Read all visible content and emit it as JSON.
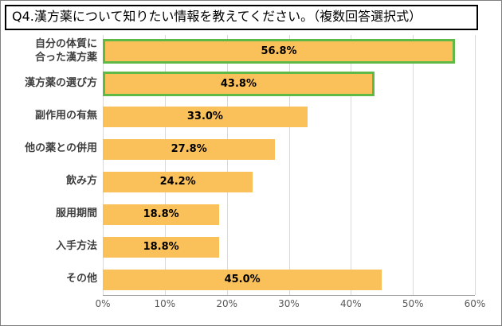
{
  "title": "Q4.漢方薬について知りたい情報を教えてください。（複数回答選択式）",
  "chart_data": {
    "type": "bar",
    "orientation": "horizontal",
    "title": "Q4.漢方薬について知りたい情報を教えてください。（複数回答選択式）",
    "categories": [
      "自分の体質に\n合った漢方薬",
      "漢方薬の選び方",
      "副作用の有無",
      "他の薬との併用",
      "飲み方",
      "服用期間",
      "入手方法",
      "その他"
    ],
    "values": [
      56.8,
      43.8,
      33.0,
      27.8,
      24.2,
      18.8,
      18.8,
      45.0
    ],
    "value_labels": [
      "56.8%",
      "43.8%",
      "33.0%",
      "27.8%",
      "24.2%",
      "18.8%",
      "18.8%",
      "45.0%"
    ],
    "highlighted": [
      true,
      true,
      false,
      false,
      false,
      false,
      false,
      false
    ],
    "xlim": [
      0,
      60
    ],
    "x_ticks": [
      "0%",
      "10%",
      "20%",
      "30%",
      "40%",
      "50%",
      "60%"
    ],
    "grid": true,
    "legend": "none",
    "colors": {
      "bar_fill": "#FAC05A",
      "highlight_border": "#5FB946",
      "gridline": "#d9d9d9",
      "axis_line": "#9b9b9b",
      "tick_text": "#595959",
      "category_text": "#3f3f3f"
    }
  }
}
